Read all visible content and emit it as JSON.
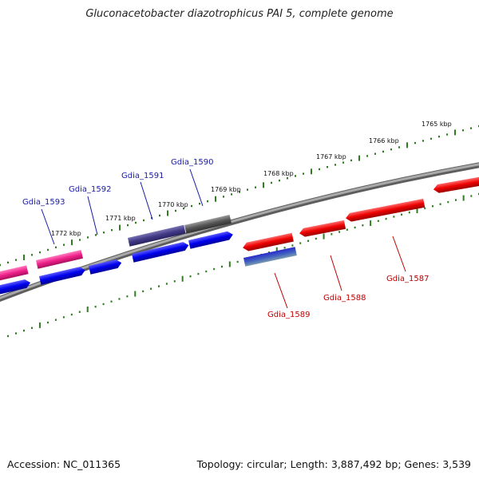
{
  "title": "Gluconacetobacter diazotrophicus PAI 5, complete genome",
  "footer": {
    "accession": "Accession: NC_011365",
    "stats": "Topology: circular; Length: 3,887,492 bp; Genes: 3,539"
  },
  "colors": {
    "backbone": "#8a8a8a",
    "ticks": "#2e7d1f",
    "forward_gene": "#f0208a",
    "forward_gene_alt": "#0000ee",
    "reverse_gene": "#ee0000",
    "label_blue": "#1a1aa8",
    "label_red": "#c00000"
  },
  "scale_labels": [
    "1765 kbp",
    "1766 kbp",
    "1767 kbp",
    "1768 kbp",
    "1769 kbp",
    "1770 kbp",
    "1771 kbp",
    "1772 kbp"
  ],
  "gene_labels": [
    {
      "text": "Gdia_1593",
      "color": "blue"
    },
    {
      "text": "Gdia_1592",
      "color": "blue"
    },
    {
      "text": "Gdia_1591",
      "color": "blue"
    },
    {
      "text": "Gdia_1590",
      "color": "blue"
    },
    {
      "text": "Gdia_1589",
      "color": "red"
    },
    {
      "text": "Gdia_1588",
      "color": "red"
    },
    {
      "text": "Gdia_1587",
      "color": "red"
    }
  ]
}
